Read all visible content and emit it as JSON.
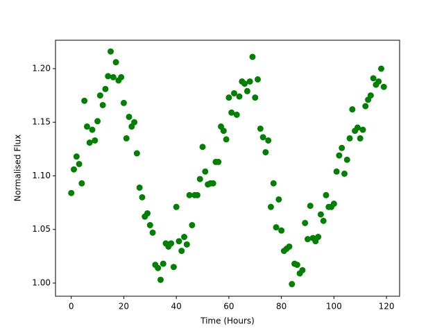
{
  "chart_data": {
    "type": "scatter",
    "xlabel": "Time (Hours)",
    "ylabel": "Normalised Flux",
    "color": "#008000",
    "grid": false,
    "x": [
      0,
      1,
      2,
      3,
      4,
      5,
      6,
      7,
      8,
      9,
      10,
      11,
      12,
      13,
      14,
      15,
      16,
      17,
      18,
      19,
      20,
      21,
      22,
      23,
      24,
      25,
      26,
      27,
      28,
      29,
      30,
      31,
      32,
      33,
      34,
      35,
      36,
      37,
      38,
      39,
      40,
      41,
      42,
      43,
      44,
      45,
      46,
      47,
      48,
      49,
      50,
      51,
      52,
      53,
      54,
      55,
      56,
      57,
      58,
      59,
      60,
      61,
      62,
      63,
      64,
      65,
      66,
      67,
      68,
      69,
      70,
      71,
      72,
      73,
      74,
      75,
      76,
      77,
      78,
      79,
      80,
      81,
      82,
      83,
      84,
      85,
      86,
      87,
      88,
      89,
      90,
      91,
      92,
      93,
      94,
      95,
      96,
      97,
      98,
      99,
      100,
      101,
      102,
      103,
      104,
      105,
      106,
      107,
      108,
      109,
      110,
      111,
      112,
      113,
      114,
      115,
      116,
      117,
      118,
      119
    ],
    "values": [
      1.084,
      1.106,
      1.118,
      1.111,
      1.093,
      1.17,
      1.146,
      1.131,
      1.143,
      1.133,
      1.151,
      1.175,
      1.166,
      1.181,
      1.193,
      1.216,
      1.192,
      1.206,
      1.189,
      1.192,
      1.168,
      1.135,
      1.155,
      1.146,
      1.15,
      1.121,
      1.089,
      1.08,
      1.062,
      1.065,
      1.054,
      1.047,
      1.017,
      1.014,
      1.003,
      1.018,
      1.037,
      1.034,
      1.037,
      1.015,
      1.071,
      1.039,
      1.03,
      1.043,
      1.036,
      1.082,
      1.054,
      1.082,
      1.082,
      1.097,
      1.127,
      1.104,
      1.092,
      1.093,
      1.093,
      1.113,
      1.113,
      1.146,
      1.142,
      1.134,
      1.173,
      1.159,
      1.177,
      1.157,
      1.174,
      1.188,
      1.186,
      1.179,
      1.188,
      1.211,
      1.173,
      1.19,
      1.144,
      1.136,
      1.122,
      1.133,
      1.071,
      1.093,
      1.052,
      1.078,
      1.049,
      1.03,
      1.032,
      1.034,
      0.999,
      1.018,
      1.017,
      1.009,
      1.012,
      1.056,
      1.041,
      1.072,
      1.042,
      1.039,
      1.043,
      1.064,
      1.058,
      1.082,
      1.071,
      1.071,
      1.074,
      1.104,
      1.119,
      1.126,
      1.102,
      1.115,
      1.135,
      1.162,
      1.142,
      1.145,
      1.135,
      1.143,
      1.165,
      1.171,
      1.175,
      1.191,
      1.185,
      1.188,
      1.2,
      1.183
    ],
    "xlim": [
      -6,
      125
    ],
    "ylim": [
      0.9877,
      1.2265
    ],
    "xticks": [
      0,
      20,
      40,
      60,
      80,
      100,
      120
    ],
    "yticks": [
      {
        "value": 1.0,
        "label": "1.00"
      },
      {
        "value": 1.05,
        "label": "1.05"
      },
      {
        "value": 1.1,
        "label": "1.10"
      },
      {
        "value": 1.15,
        "label": "1.15"
      },
      {
        "value": 1.2,
        "label": "1.20"
      }
    ]
  }
}
